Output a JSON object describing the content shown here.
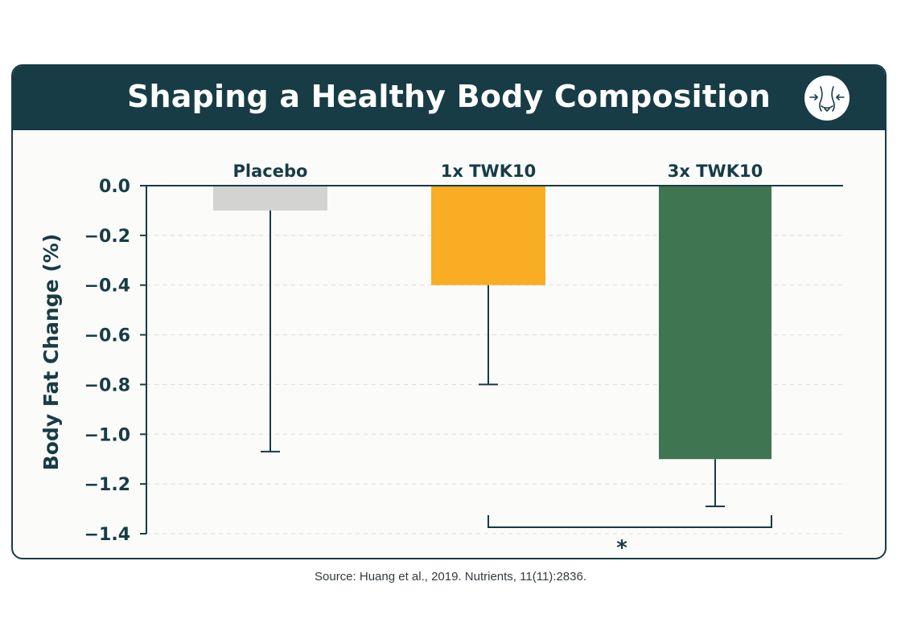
{
  "header": {
    "title": "Shaping a Healthy Body Composition",
    "icon": "body-composition-icon"
  },
  "source": "Source: Huang et al., 2019. Nutrients, 11(11):2836.",
  "colors": {
    "header_bg": "#173c45",
    "placebo": "#d3d3d1",
    "one_x": "#f8ad25",
    "three_x": "#3f7550",
    "axis": "#173c45"
  },
  "chart_data": {
    "type": "bar",
    "title": "",
    "xlabel": "",
    "ylabel": "Body Fat Change (%)",
    "categories": [
      "Placebo",
      "1x TWK10",
      "3x TWK10"
    ],
    "values": [
      -0.1,
      -0.4,
      -1.1
    ],
    "error_low": [
      -1.07,
      -0.8,
      -1.29
    ],
    "ylim": [
      -1.4,
      0
    ],
    "yticks": [
      0,
      -0.2,
      -0.4,
      -0.6,
      -0.8,
      -1.0,
      -1.2,
      -1.4
    ],
    "ytick_labels": [
      "0.0",
      "−0.2",
      "−0.4",
      "−0.6",
      "−0.8",
      "−1.0",
      "−1.2",
      "−1.4"
    ],
    "grid": true,
    "significance": {
      "between": [
        "1x TWK10",
        "3x TWK10"
      ],
      "label": "*"
    }
  }
}
